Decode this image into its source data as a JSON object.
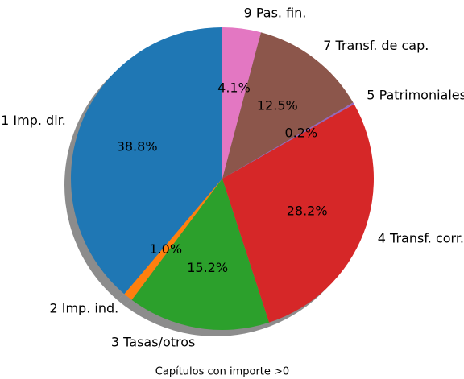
{
  "chart_data": {
    "type": "pie",
    "categories": [
      "1 Imp. dir.",
      "2 Imp. ind.",
      "3 Tasas/otros",
      "4 Transf. corr.",
      "5 Patrimoniales",
      "7 Transf. de cap.",
      "9 Pas. fin."
    ],
    "values": [
      38.8,
      1.0,
      15.2,
      28.2,
      0.2,
      12.5,
      4.1
    ],
    "value_labels": [
      "38.8%",
      "1.0%",
      "15.2%",
      "28.2%",
      "0.2%",
      "12.5%",
      "4.1%"
    ],
    "colors": [
      "#1f77b4",
      "#ff7f0e",
      "#2ca02c",
      "#d62728",
      "#9467bd",
      "#8c564b",
      "#e377c2"
    ],
    "xlabel": "Capítulos con importe >0",
    "shadow": true
  }
}
